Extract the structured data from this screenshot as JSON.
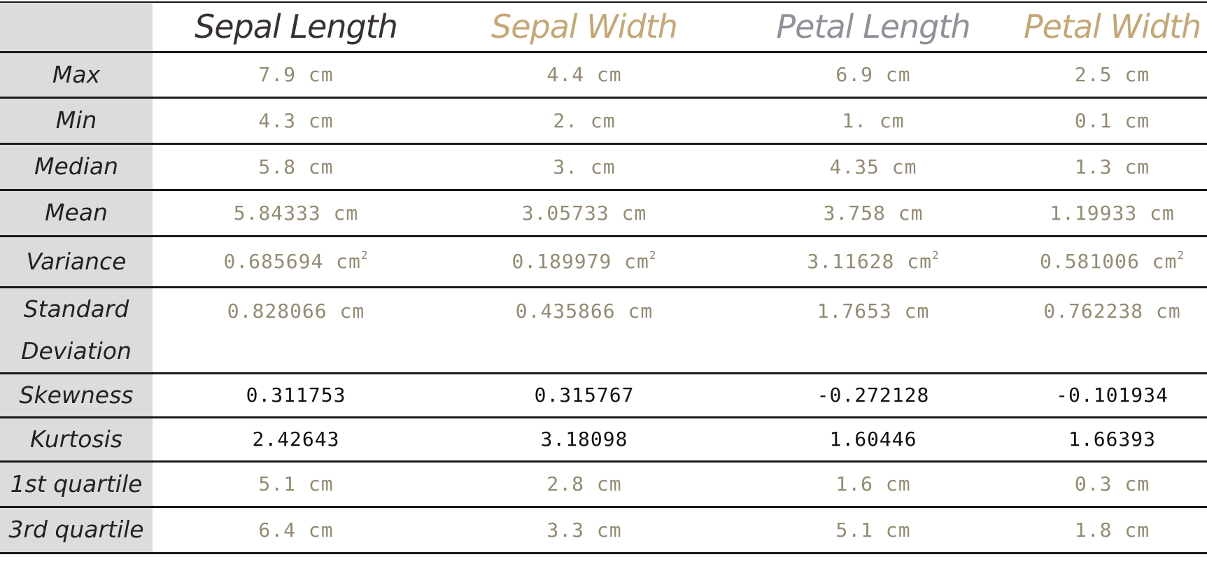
{
  "headers": [
    {
      "label": "Sepal Length",
      "color": "#383131"
    },
    {
      "label": "Sepal Width",
      "color": "#c4a774"
    },
    {
      "label": "Petal Length",
      "color": "#8f909a"
    },
    {
      "label": "Petal Width",
      "color": "#c4a774"
    }
  ],
  "rows": [
    {
      "label": "Max",
      "values": [
        "7.9 cm",
        "4.4 cm",
        "6.9 cm",
        "2.5 cm"
      ]
    },
    {
      "label": "Min",
      "values": [
        "4.3 cm",
        "2. cm",
        "1. cm",
        "0.1 cm"
      ]
    },
    {
      "label": "Median",
      "values": [
        "5.8 cm",
        "3. cm",
        "4.35 cm",
        "1.3 cm"
      ]
    },
    {
      "label": "Mean",
      "values": [
        "5.84333 cm",
        "3.05733 cm",
        "3.758 cm",
        "1.19933 cm"
      ]
    },
    {
      "label": "Variance",
      "values": [
        "0.685694 cm",
        "0.189979 cm",
        "3.11628 cm",
        "0.581006 cm"
      ],
      "unit_exponent": "2"
    },
    {
      "label": "Standard Deviation",
      "values": [
        "0.828066 cm",
        "0.435866 cm",
        "1.7653 cm",
        "0.762238 cm"
      ]
    },
    {
      "label": "Skewness",
      "values": [
        "0.311753",
        "0.315767",
        "-0.272128",
        "-0.101934"
      ]
    },
    {
      "label": "Kurtosis",
      "values": [
        "2.42643",
        "3.18098",
        "1.60446",
        "1.66393"
      ]
    },
    {
      "label": "1st quartile",
      "values": [
        "5.1 cm",
        "2.8 cm",
        "1.6 cm",
        "0.3 cm"
      ]
    },
    {
      "label": "3rd quartile",
      "values": [
        "6.4 cm",
        "3.3 cm",
        "5.1 cm",
        "1.8 cm"
      ]
    }
  ]
}
